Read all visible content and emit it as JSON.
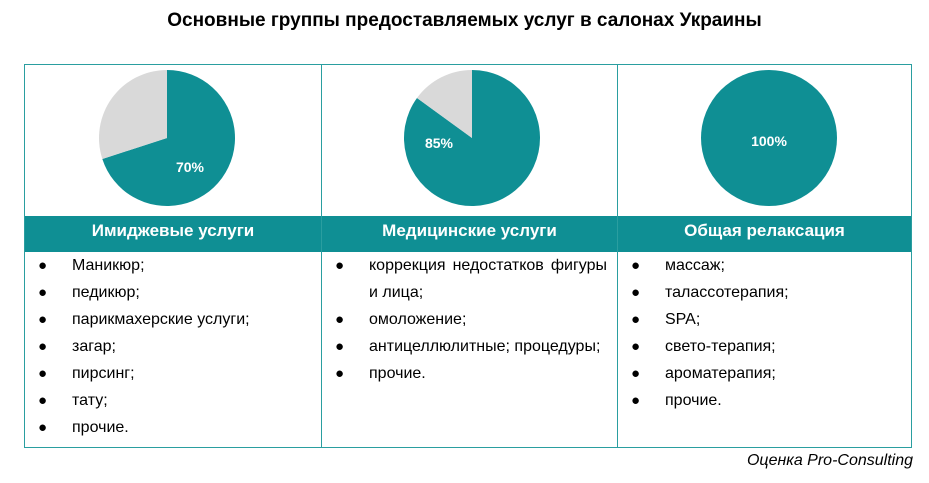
{
  "title": "Основные группы предоставляемых услуг в салонах Украины",
  "colors": {
    "accent": "#0f8f94",
    "remainder": "#d9d9d9"
  },
  "chart_data": [
    {
      "type": "pie",
      "title": "Имиджевые услуги",
      "slices": [
        {
          "label": "70%",
          "value": 70,
          "color": "#0f8f94"
        },
        {
          "label": "",
          "value": 30,
          "color": "#d9d9d9"
        }
      ]
    },
    {
      "type": "pie",
      "title": "Медицинские услуги",
      "slices": [
        {
          "label": "85%",
          "value": 85,
          "color": "#0f8f94"
        },
        {
          "label": "",
          "value": 15,
          "color": "#d9d9d9"
        }
      ]
    },
    {
      "type": "pie",
      "title": "Общая релаксация",
      "slices": [
        {
          "label": "100%",
          "value": 100,
          "color": "#0f8f94"
        }
      ]
    }
  ],
  "columns": [
    {
      "header": "Имиджевые услуги",
      "pie_label": "70%",
      "items": [
        "Маникюр;",
        "педикюр;",
        "парикмахерские услуги;",
        "загар;",
        "пирсинг;",
        "тату;",
        "прочие."
      ]
    },
    {
      "header": "Медицинские услуги",
      "pie_label": "85%",
      "items": [
        "коррекция недостатков фигуры и лица;",
        "омоложение;",
        "антицеллюлитные; процедуры;",
        "прочие."
      ]
    },
    {
      "header": "Общая релаксация",
      "pie_label": "100%",
      "items": [
        "массаж;",
        "талассотерапия;",
        "SPA;",
        "свето-терапия;",
        "ароматерапия;",
        "прочие."
      ]
    }
  ],
  "source": "Оценка Pro-Consulting"
}
